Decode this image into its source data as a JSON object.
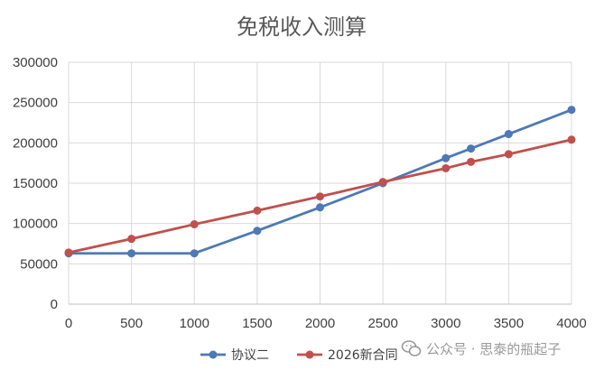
{
  "chart_data": {
    "type": "line",
    "title": "免税收入测算",
    "xlabel": "",
    "ylabel": "",
    "x_ticks": [
      "0",
      "500",
      "1000",
      "1500",
      "2000",
      "2500",
      "3000",
      "3500",
      "4000"
    ],
    "y_ticks": [
      "0",
      "50000",
      "100000",
      "150000",
      "200000",
      "250000",
      "300000"
    ],
    "xlim": [
      0,
      4000
    ],
    "ylim": [
      0,
      300000
    ],
    "grid": true,
    "legend_position": "bottom",
    "series": [
      {
        "name": "协议二",
        "color": "#4E79B5",
        "x": [
          0,
          500,
          1000,
          1500,
          2000,
          2500,
          3000,
          3200,
          3500,
          4000
        ],
        "y": [
          63000,
          63000,
          63000,
          91000,
          120000,
          150000,
          181000,
          193000,
          211000,
          241000
        ]
      },
      {
        "name": "2026新合同",
        "color": "#C0504D",
        "x": [
          0,
          500,
          1000,
          1500,
          2000,
          2500,
          3000,
          3200,
          3500,
          4000
        ],
        "y": [
          64000,
          81000,
          99000,
          116000,
          133500,
          151500,
          168500,
          176500,
          186000,
          204000
        ]
      }
    ]
  },
  "watermark": {
    "text": "公众号 · 思泰的瓶起子",
    "icon": "wechat-icon"
  }
}
